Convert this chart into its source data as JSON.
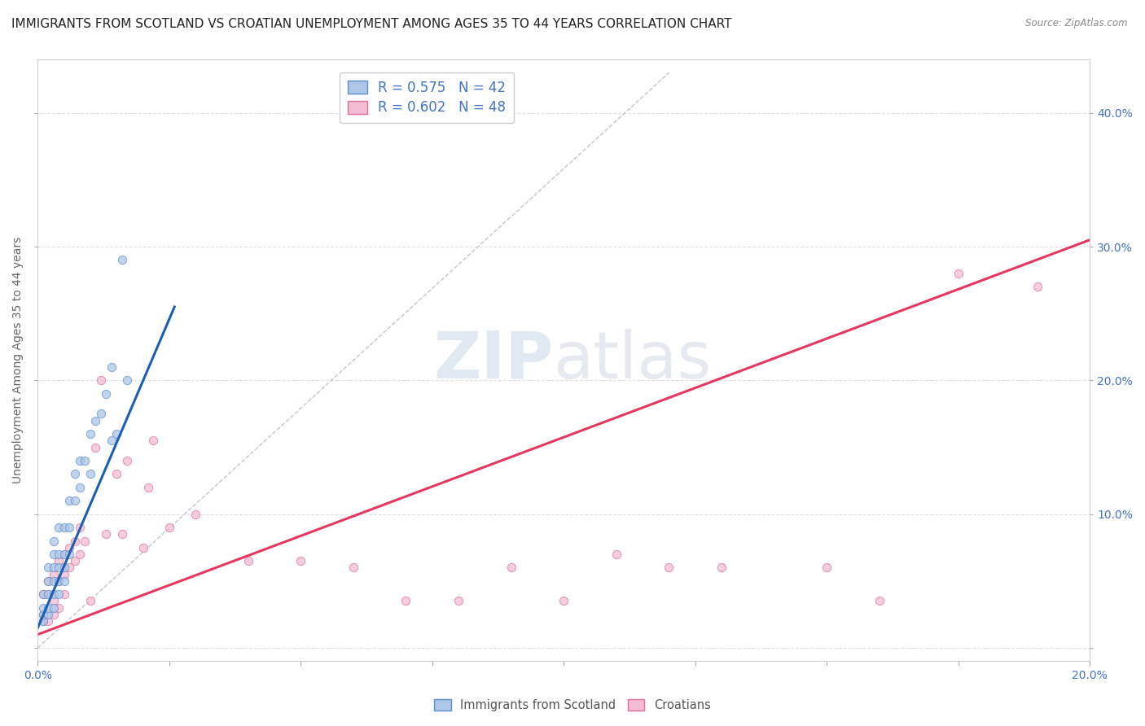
{
  "title": "IMMIGRANTS FROM SCOTLAND VS CROATIAN UNEMPLOYMENT AMONG AGES 35 TO 44 YEARS CORRELATION CHART",
  "source": "Source: ZipAtlas.com",
  "ylabel": "Unemployment Among Ages 35 to 44 years",
  "ytick_values": [
    0.0,
    0.1,
    0.2,
    0.3,
    0.4
  ],
  "ytick_labels_right": [
    "",
    "10.0%",
    "20.0%",
    "30.0%",
    "40.0%"
  ],
  "xlim": [
    0.0,
    0.2
  ],
  "ylim": [
    -0.01,
    0.44
  ],
  "legend_entries": [
    {
      "label": "R = 0.575   N = 42"
    },
    {
      "label": "R = 0.602   N = 48"
    }
  ],
  "watermark_zip": "ZIP",
  "watermark_atlas": "atlas",
  "scatter_blue": {
    "face_color": "#aec6e8",
    "edge_color": "#5b8fc9",
    "x": [
      0.001,
      0.001,
      0.001,
      0.001,
      0.002,
      0.002,
      0.002,
      0.002,
      0.002,
      0.003,
      0.003,
      0.003,
      0.003,
      0.003,
      0.003,
      0.004,
      0.004,
      0.004,
      0.004,
      0.004,
      0.005,
      0.005,
      0.005,
      0.005,
      0.006,
      0.006,
      0.006,
      0.007,
      0.007,
      0.008,
      0.008,
      0.009,
      0.01,
      0.01,
      0.011,
      0.012,
      0.013,
      0.014,
      0.014,
      0.015,
      0.016,
      0.017
    ],
    "y": [
      0.02,
      0.025,
      0.03,
      0.04,
      0.025,
      0.03,
      0.04,
      0.05,
      0.06,
      0.03,
      0.04,
      0.05,
      0.06,
      0.07,
      0.08,
      0.04,
      0.05,
      0.06,
      0.07,
      0.09,
      0.05,
      0.06,
      0.07,
      0.09,
      0.07,
      0.09,
      0.11,
      0.11,
      0.13,
      0.12,
      0.14,
      0.14,
      0.13,
      0.16,
      0.17,
      0.175,
      0.19,
      0.21,
      0.155,
      0.16,
      0.29,
      0.2
    ]
  },
  "scatter_pink": {
    "face_color": "#f4bdd3",
    "edge_color": "#e07098",
    "x": [
      0.001,
      0.001,
      0.001,
      0.002,
      0.002,
      0.002,
      0.003,
      0.003,
      0.003,
      0.004,
      0.004,
      0.004,
      0.005,
      0.005,
      0.005,
      0.006,
      0.006,
      0.007,
      0.007,
      0.008,
      0.008,
      0.009,
      0.01,
      0.011,
      0.012,
      0.013,
      0.015,
      0.016,
      0.017,
      0.02,
      0.021,
      0.022,
      0.025,
      0.03,
      0.04,
      0.05,
      0.06,
      0.07,
      0.08,
      0.09,
      0.1,
      0.11,
      0.12,
      0.13,
      0.15,
      0.16,
      0.175,
      0.19
    ],
    "y": [
      0.02,
      0.025,
      0.04,
      0.02,
      0.04,
      0.05,
      0.025,
      0.035,
      0.055,
      0.03,
      0.05,
      0.065,
      0.04,
      0.055,
      0.07,
      0.06,
      0.075,
      0.065,
      0.08,
      0.07,
      0.09,
      0.08,
      0.035,
      0.15,
      0.2,
      0.085,
      0.13,
      0.085,
      0.14,
      0.075,
      0.12,
      0.155,
      0.09,
      0.1,
      0.065,
      0.065,
      0.06,
      0.035,
      0.035,
      0.06,
      0.035,
      0.07,
      0.06,
      0.06,
      0.06,
      0.035,
      0.28,
      0.27
    ]
  },
  "trendline_blue": {
    "color": "#1a5fb4",
    "x": [
      0.0,
      0.026
    ],
    "y": [
      0.015,
      0.255
    ]
  },
  "trendline_pink": {
    "color": "#e8365d",
    "x": [
      0.0,
      0.2
    ],
    "y": [
      0.01,
      0.305
    ]
  },
  "diagonal_dashed": {
    "color": "#b0b8c8",
    "x": [
      0.0,
      0.12
    ],
    "y": [
      0.0,
      0.43
    ]
  },
  "background_color": "#ffffff",
  "grid_color": "#e0e0e0",
  "grid_style": "--",
  "title_fontsize": 11,
  "axis_label_fontsize": 10,
  "tick_fontsize": 10,
  "legend_fontsize": 12
}
